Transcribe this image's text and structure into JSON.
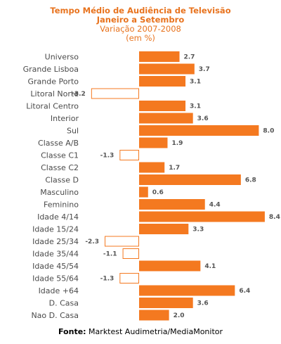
{
  "chart_data": {
    "type": "bar",
    "orientation": "horizontal",
    "title_lines": [
      "Tempo Médio de Audiência  de Televisão",
      "Janeiro a Setembro"
    ],
    "subtitle_lines": [
      "Variação 2007-2008",
      "(em %)"
    ],
    "categories": [
      "Universo",
      "Grande Lisboa",
      "Grande Porto",
      "Litoral Norte",
      "Litoral Centro",
      "Interior",
      "Sul",
      "Classe A/B",
      "Classe C1",
      "Classe C2",
      "Classe D",
      "Masculino",
      "Feminino",
      "Idade 4/14",
      "Idade 15/24",
      "Idade 25/34",
      "Idade 35/44",
      "Idade 45/54",
      "Idade 55/64",
      "Idade +64",
      "D. Casa",
      "Nao D. Casa"
    ],
    "values": [
      2.7,
      3.7,
      3.1,
      -3.2,
      3.1,
      3.6,
      8.0,
      1.9,
      -1.3,
      1.7,
      6.8,
      0.6,
      4.4,
      8.4,
      3.3,
      -2.3,
      -1.1,
      4.1,
      -1.3,
      6.4,
      3.6,
      2.0
    ],
    "value_labels": [
      "2.7",
      "3.7",
      "3.1",
      "-3.2",
      "3.1",
      "3.6",
      "8.0",
      "1.9",
      "-1.3",
      "1.7",
      "6.8",
      "0.6",
      "4.4",
      "8.4",
      "3.3",
      "-2.3",
      "-1.1",
      "4.1",
      "-1.3",
      "6.4",
      "3.6",
      "2.0"
    ],
    "xlim": [
      -3.2,
      8.4
    ],
    "grid": false,
    "legend": "none",
    "colors": {
      "positive_fill": "#f47920",
      "negative_fill": "#ffffff",
      "negative_stroke": "#f47920",
      "title": "#e8731e"
    }
  },
  "source": {
    "label": "Fonte:",
    "text": " Marktest Audimetria/MediaMonitor"
  }
}
